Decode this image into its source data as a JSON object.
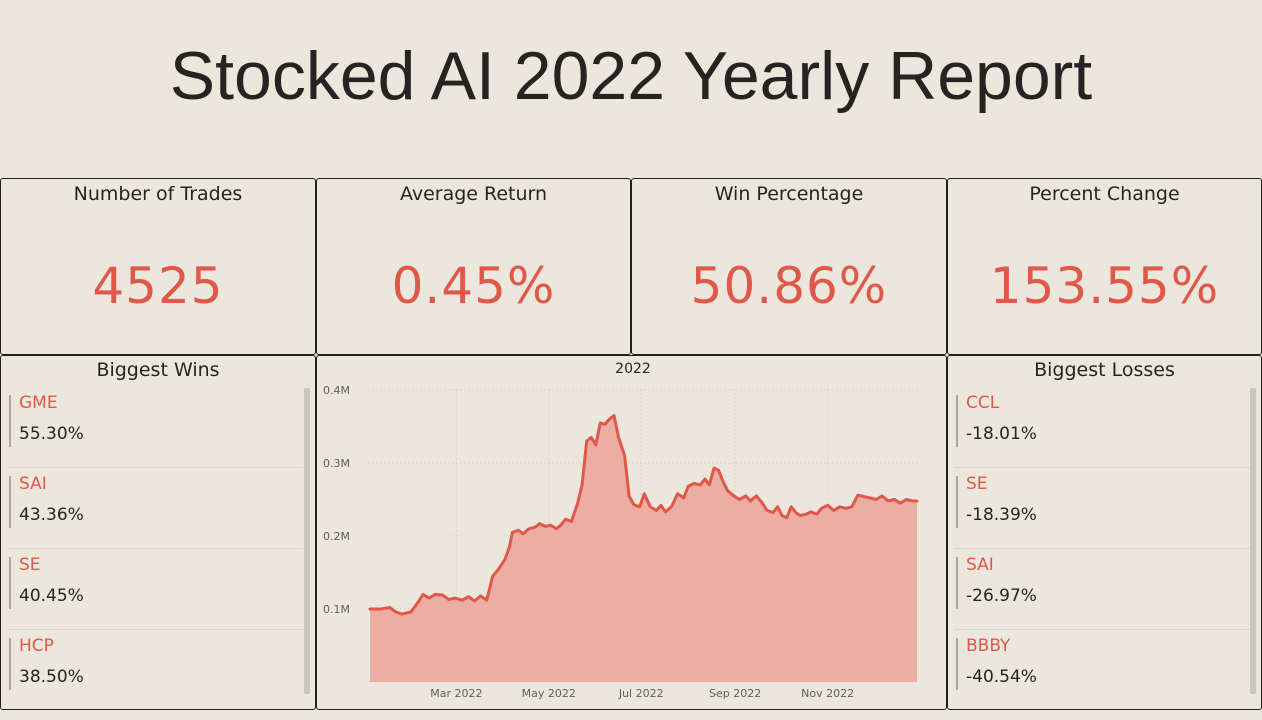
{
  "title": "Stocked AI 2022 Yearly Report",
  "kpis": [
    {
      "label": "Number of Trades",
      "value": "4525"
    },
    {
      "label": "Average Return",
      "value": "0.45%"
    },
    {
      "label": "Win Percentage",
      "value": "50.86%"
    },
    {
      "label": "Percent Change",
      "value": "153.55%"
    }
  ],
  "biggest_wins": {
    "title": "Biggest Wins",
    "items": [
      {
        "ticker": "GME",
        "pct": "55.30%"
      },
      {
        "ticker": "SAI",
        "pct": "43.36%"
      },
      {
        "ticker": "SE",
        "pct": "40.45%"
      },
      {
        "ticker": "HCP",
        "pct": "38.50%"
      }
    ]
  },
  "biggest_losses": {
    "title": "Biggest Losses",
    "items": [
      {
        "ticker": "CCL",
        "pct": "-18.01%"
      },
      {
        "ticker": "SE",
        "pct": "-18.39%"
      },
      {
        "ticker": "SAI",
        "pct": "-26.97%"
      },
      {
        "ticker": "BBBY",
        "pct": "-40.54%"
      }
    ]
  },
  "colors": {
    "accent": "#e0584a",
    "area_fill": "#ecaea4",
    "background": "#ebe7dd",
    "text": "#252423"
  },
  "chart_data": {
    "type": "area",
    "title": "2022",
    "xlabel": "",
    "ylabel": "",
    "ylim": [
      0,
      0.4
    ],
    "y_unit": "M",
    "yticks": [
      {
        "value": 0.1,
        "label": "0.1M"
      },
      {
        "value": 0.2,
        "label": "0.2M"
      },
      {
        "value": 0.3,
        "label": "0.3M"
      },
      {
        "value": 0.4,
        "label": "0.4M"
      }
    ],
    "xlim": [
      "2022-01-03",
      "2022-12-30"
    ],
    "xticks": [
      {
        "date": "2022-03-01",
        "label": "Mar 2022"
      },
      {
        "date": "2022-05-01",
        "label": "May 2022"
      },
      {
        "date": "2022-07-01",
        "label": "Jul 2022"
      },
      {
        "date": "2022-09-01",
        "label": "Sep 2022"
      },
      {
        "date": "2022-11-01",
        "label": "Nov 2022"
      }
    ],
    "grid": true,
    "series": [
      {
        "points": [
          [
            "2022-01-03",
            0.1
          ],
          [
            "2022-01-10",
            0.1
          ],
          [
            "2022-01-16",
            0.102
          ],
          [
            "2022-01-20",
            0.096
          ],
          [
            "2022-01-24",
            0.093
          ],
          [
            "2022-01-30",
            0.096
          ],
          [
            "2022-02-04",
            0.11
          ],
          [
            "2022-02-07",
            0.12
          ],
          [
            "2022-02-11",
            0.115
          ],
          [
            "2022-02-15",
            0.12
          ],
          [
            "2022-02-20",
            0.119
          ],
          [
            "2022-02-24",
            0.113
          ],
          [
            "2022-02-28",
            0.115
          ],
          [
            "2022-03-05",
            0.112
          ],
          [
            "2022-03-09",
            0.117
          ],
          [
            "2022-03-13",
            0.111
          ],
          [
            "2022-03-17",
            0.118
          ],
          [
            "2022-03-21",
            0.112
          ],
          [
            "2022-03-25",
            0.145
          ],
          [
            "2022-03-29",
            0.155
          ],
          [
            "2022-04-02",
            0.168
          ],
          [
            "2022-04-05",
            0.185
          ],
          [
            "2022-04-07",
            0.205
          ],
          [
            "2022-04-11",
            0.208
          ],
          [
            "2022-04-14",
            0.203
          ],
          [
            "2022-04-18",
            0.21
          ],
          [
            "2022-04-22",
            0.212
          ],
          [
            "2022-04-25",
            0.217
          ],
          [
            "2022-04-29",
            0.213
          ],
          [
            "2022-05-02",
            0.215
          ],
          [
            "2022-05-06",
            0.21
          ],
          [
            "2022-05-09",
            0.215
          ],
          [
            "2022-05-12",
            0.223
          ],
          [
            "2022-05-16",
            0.22
          ],
          [
            "2022-05-20",
            0.245
          ],
          [
            "2022-05-23",
            0.27
          ],
          [
            "2022-05-26",
            0.33
          ],
          [
            "2022-05-29",
            0.335
          ],
          [
            "2022-06-01",
            0.325
          ],
          [
            "2022-06-04",
            0.355
          ],
          [
            "2022-06-07",
            0.353
          ],
          [
            "2022-06-10",
            0.36
          ],
          [
            "2022-06-13",
            0.365
          ],
          [
            "2022-06-16",
            0.335
          ],
          [
            "2022-06-20",
            0.31
          ],
          [
            "2022-06-23",
            0.255
          ],
          [
            "2022-06-26",
            0.243
          ],
          [
            "2022-06-30",
            0.24
          ],
          [
            "2022-07-03",
            0.258
          ],
          [
            "2022-07-07",
            0.24
          ],
          [
            "2022-07-11",
            0.235
          ],
          [
            "2022-07-14",
            0.242
          ],
          [
            "2022-07-17",
            0.233
          ],
          [
            "2022-07-21",
            0.24
          ],
          [
            "2022-07-25",
            0.258
          ],
          [
            "2022-07-29",
            0.252
          ],
          [
            "2022-08-01",
            0.268
          ],
          [
            "2022-08-05",
            0.272
          ],
          [
            "2022-08-09",
            0.27
          ],
          [
            "2022-08-12",
            0.278
          ],
          [
            "2022-08-15",
            0.27
          ],
          [
            "2022-08-18",
            0.293
          ],
          [
            "2022-08-21",
            0.29
          ],
          [
            "2022-08-24",
            0.275
          ],
          [
            "2022-08-27",
            0.262
          ],
          [
            "2022-08-31",
            0.255
          ],
          [
            "2022-09-04",
            0.25
          ],
          [
            "2022-09-08",
            0.255
          ],
          [
            "2022-09-11",
            0.248
          ],
          [
            "2022-09-15",
            0.255
          ],
          [
            "2022-09-19",
            0.245
          ],
          [
            "2022-09-22",
            0.235
          ],
          [
            "2022-09-26",
            0.232
          ],
          [
            "2022-09-29",
            0.24
          ],
          [
            "2022-10-02",
            0.228
          ],
          [
            "2022-10-05",
            0.225
          ],
          [
            "2022-10-08",
            0.24
          ],
          [
            "2022-10-11",
            0.232
          ],
          [
            "2022-10-14",
            0.228
          ],
          [
            "2022-10-18",
            0.23
          ],
          [
            "2022-10-21",
            0.233
          ],
          [
            "2022-10-25",
            0.23
          ],
          [
            "2022-10-28",
            0.238
          ],
          [
            "2022-11-01",
            0.242
          ],
          [
            "2022-11-05",
            0.235
          ],
          [
            "2022-11-09",
            0.24
          ],
          [
            "2022-11-13",
            0.238
          ],
          [
            "2022-11-17",
            0.24
          ],
          [
            "2022-11-21",
            0.256
          ],
          [
            "2022-11-25",
            0.254
          ],
          [
            "2022-11-29",
            0.252
          ],
          [
            "2022-12-03",
            0.25
          ],
          [
            "2022-12-07",
            0.255
          ],
          [
            "2022-12-11",
            0.248
          ],
          [
            "2022-12-15",
            0.25
          ],
          [
            "2022-12-19",
            0.245
          ],
          [
            "2022-12-23",
            0.25
          ],
          [
            "2022-12-27",
            0.248
          ],
          [
            "2022-12-30",
            0.248
          ]
        ]
      }
    ]
  }
}
